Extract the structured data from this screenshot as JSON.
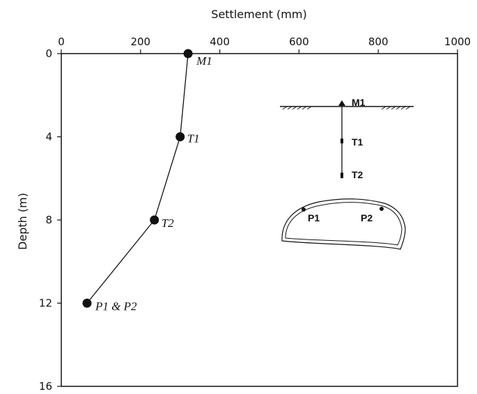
{
  "chart_data": {
    "type": "line",
    "title": "",
    "xlabel": "Settlement (mm)",
    "ylabel": "Depth (m)",
    "xlim": [
      0,
      1000
    ],
    "ylim": [
      0,
      16
    ],
    "y_inverted": true,
    "x_axis_position": "top",
    "xticks": [
      0,
      200,
      400,
      600,
      800,
      1000
    ],
    "yticks": [
      0,
      4,
      8,
      12,
      16
    ],
    "grid": false,
    "series": [
      {
        "points": [
          {
            "x": 320,
            "y": 0,
            "label": "M1"
          },
          {
            "x": 300,
            "y": 4,
            "label": "T1"
          },
          {
            "x": 235,
            "y": 8,
            "label": "T2"
          },
          {
            "x": 65,
            "y": 12,
            "label": "P1 & P2"
          }
        ]
      }
    ],
    "annotations": {
      "schematic_labels": [
        "M1",
        "T1",
        "T2",
        "P1",
        "P2"
      ]
    }
  }
}
